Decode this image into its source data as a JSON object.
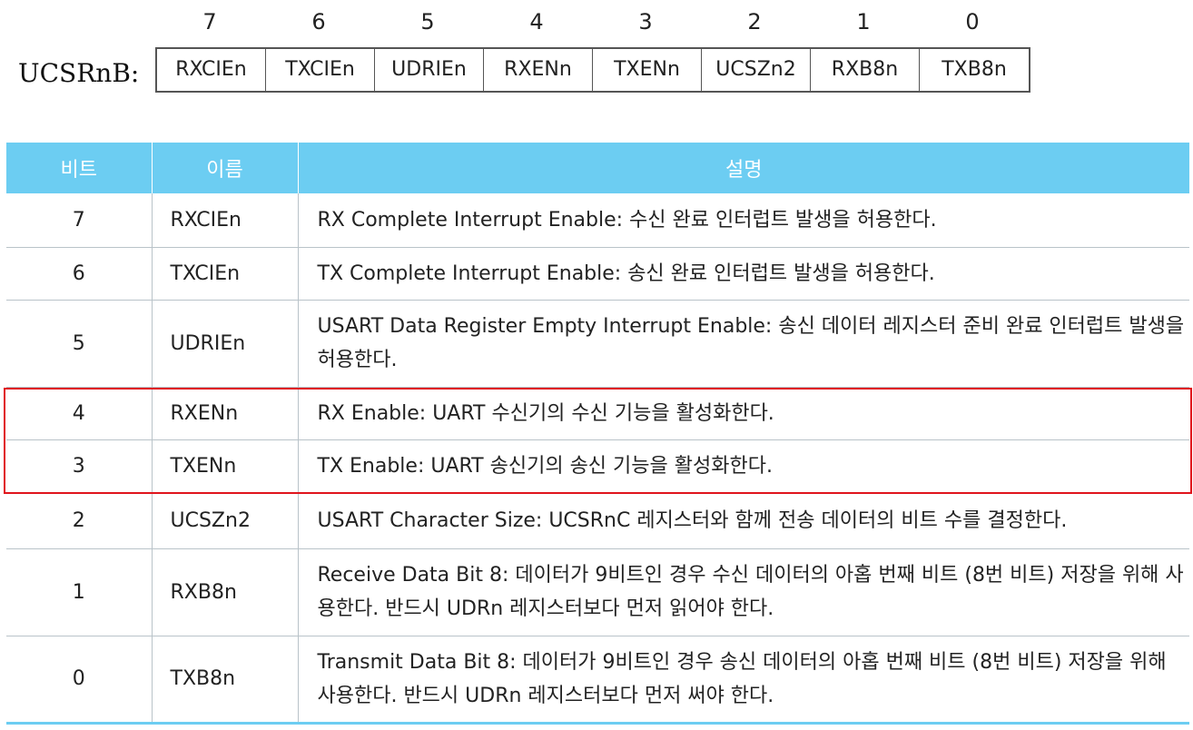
{
  "register": {
    "label": "UCSRnB:",
    "bit_numbers": [
      "7",
      "6",
      "5",
      "4",
      "3",
      "2",
      "1",
      "0"
    ],
    "bit_names": [
      "RXCIEn",
      "TXCIEn",
      "UDRIEn",
      "RXENn",
      "TXENn",
      "UCSZn2",
      "RXB8n",
      "TXB8n"
    ]
  },
  "table": {
    "headers": [
      "비트",
      "이름",
      "설명"
    ],
    "rows": [
      {
        "bit": "7",
        "name": "RXCIEn",
        "desc": "RX Complete Interrupt Enable: 수신 완료 인터럽트 발생을 허용한다."
      },
      {
        "bit": "6",
        "name": "TXCIEn",
        "desc": "TX Complete Interrupt Enable: 송신 완료 인터럽트 발생을 허용한다."
      },
      {
        "bit": "5",
        "name": "UDRIEn",
        "desc": "USART Data Register Empty Interrupt Enable: 송신 데이터 레지스터 준비 완료 인터럽트 발생을 허용한다."
      },
      {
        "bit": "4",
        "name": "RXENn",
        "desc": "RX Enable: UART 수신기의 수신 기능을 활성화한다."
      },
      {
        "bit": "3",
        "name": "TXENn",
        "desc": "TX Enable: UART 송신기의 송신 기능을 활성화한다."
      },
      {
        "bit": "2",
        "name": "UCSZn2",
        "desc": "USART Character Size: UCSRnC 레지스터와 함께 전송 데이터의 비트 수를 결정한다."
      },
      {
        "bit": "1",
        "name": "RXB8n",
        "desc": "Receive Data Bit 8: 데이터가 9비트인 경우 수신 데이터의 아홉 번째 비트 (8번 비트) 저장을 위해 사용한다. 반드시 UDRn 레지스터보다 먼저 읽어야 한다."
      },
      {
        "bit": "0",
        "name": "TXB8n",
        "desc": "Transmit Data Bit 8: 데이터가 9비트인 경우 송신 데이터의 아홉 번째 비트 (8번 비트) 저장을 위해 사용한다. 반드시 UDRn 레지스터보다 먼저 써야 한다."
      }
    ]
  },
  "colors": {
    "header_bg": "#6ccdf2",
    "highlight_border": "#e0141c"
  }
}
